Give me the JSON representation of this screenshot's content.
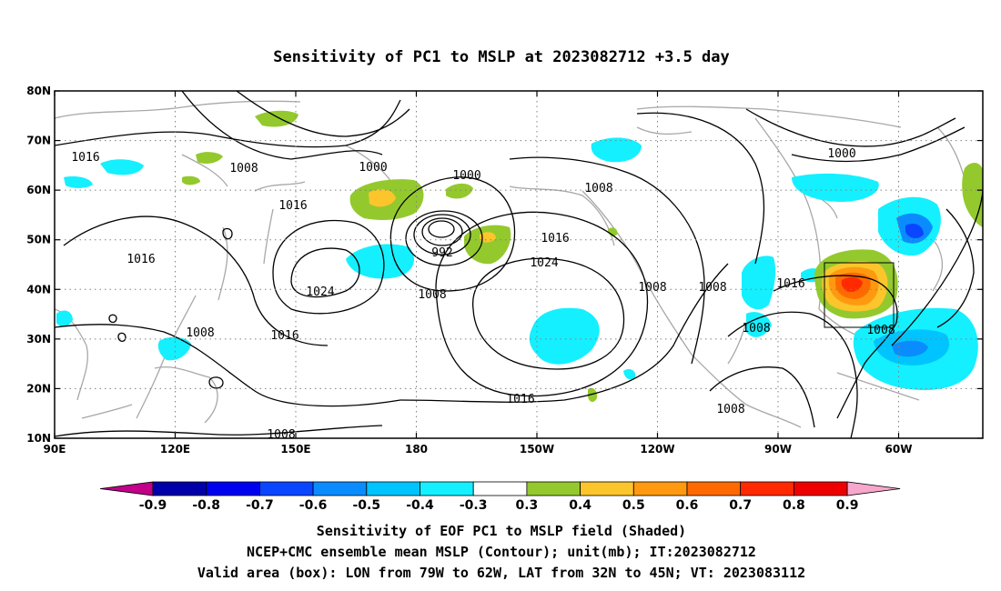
{
  "title": "Sensitivity of PC1 to MSLP at 2023082712 +3.5 day",
  "map": {
    "lon_labels": [
      "90E",
      "120E",
      "150E",
      "180",
      "150W",
      "120W",
      "90W",
      "60W"
    ],
    "lat_labels": [
      "80N",
      "70N",
      "60N",
      "50N",
      "40N",
      "30N",
      "20N",
      "10N"
    ],
    "grid": "dotted"
  },
  "contour_labels": [
    "1016",
    "1008",
    "1000",
    "1000",
    "1008",
    "1000",
    "1016",
    "1016",
    "992",
    "1016",
    "1024",
    "1024",
    "1008",
    "1008",
    "1008",
    "1016",
    "1008",
    "1008",
    "1016",
    "1008",
    "1016",
    "1008",
    "1008"
  ],
  "colorbar": {
    "labels": [
      "-0.9",
      "-0.8",
      "-0.7",
      "-0.6",
      "-0.5",
      "-0.4",
      "-0.3",
      "0.3",
      "0.4",
      "0.5",
      "0.6",
      "0.7",
      "0.8",
      "0.9"
    ],
    "low_cap_color": "#c2008a",
    "high_cap_color": "#f7a6cc",
    "colors": [
      "#0000a8",
      "#0000f0",
      "#0a46ff",
      "#0a8cff",
      "#00c4ff",
      "#14f0ff",
      "#ffffff",
      "#94c92e",
      "#fcc52c",
      "#ff9a10",
      "#ff6a00",
      "#ff2a00",
      "#ee0000"
    ]
  },
  "valid_box": {
    "lon_from": "79W",
    "lon_to": "62W",
    "lat_from": "32N",
    "lat_to": "45N"
  },
  "captions": [
    "Sensitivity of EOF PC1 to MSLP field (Shaded)",
    "NCEP+CMC ensemble mean MSLP (Contour); unit(mb); IT:2023082712",
    "Valid area (box): LON from 79W to 62W, LAT from 32N to 45N; VT: 2023083112"
  ]
}
